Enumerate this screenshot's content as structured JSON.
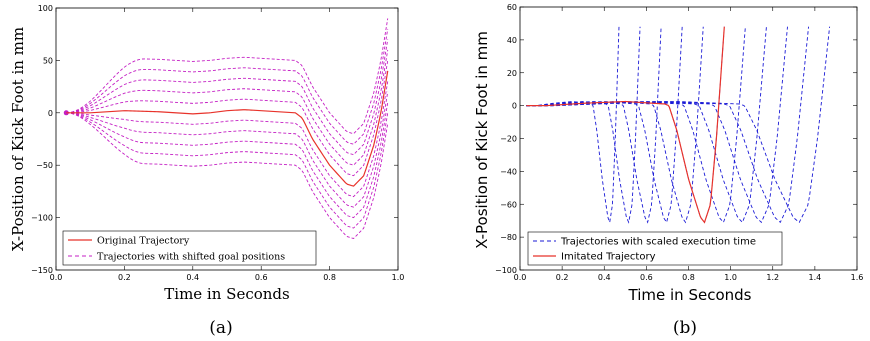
{
  "chart_data": [
    {
      "id": "a",
      "type": "line",
      "caption": "(a)",
      "xlabel": "Time in Seconds",
      "ylabel": "X-Position of Kick Foot in mm",
      "xlim": [
        0.0,
        1.0
      ],
      "ylim": [
        -150,
        100
      ],
      "xticks": [
        "0.0",
        "0.2",
        "0.4",
        "0.6",
        "0.8",
        "1.0"
      ],
      "yticks": [
        "100",
        "50",
        "0",
        "−50",
        "−100",
        "−150"
      ],
      "legend_position": "lower-left",
      "grid": false,
      "colors": {
        "original": "#e8332b",
        "shifted": "#c41fc4"
      },
      "series": [
        {
          "name": "Original Trajectory",
          "style": "solid",
          "x": [
            0.03,
            0.1,
            0.2,
            0.3,
            0.4,
            0.45,
            0.5,
            0.55,
            0.6,
            0.65,
            0.7,
            0.72,
            0.75,
            0.8,
            0.85,
            0.87,
            0.9,
            0.93,
            0.95,
            0.97
          ],
          "y": [
            0,
            0,
            2,
            1,
            -1,
            0,
            2,
            3,
            2,
            1,
            0,
            -5,
            -25,
            -50,
            -68,
            -70,
            -60,
            -30,
            0,
            40
          ]
        },
        {
          "name": "Trajectories with shifted goal positions",
          "style": "dashed",
          "offsets": [
            -50,
            -40,
            -30,
            -20,
            -10,
            10,
            20,
            30,
            40,
            50
          ]
        }
      ]
    },
    {
      "id": "b",
      "type": "line",
      "caption": "(b)",
      "xlabel": "Time in Seconds",
      "ylabel": "X-Position of Kick Foot in mm",
      "xlim": [
        0.0,
        1.6
      ],
      "ylim": [
        -100,
        60
      ],
      "xticks": [
        "0.0",
        "0.2",
        "0.4",
        "0.6",
        "0.8",
        "1.0",
        "1.2",
        "1.4",
        "1.6"
      ],
      "yticks": [
        "60",
        "40",
        "20",
        "0",
        "−20",
        "−40",
        "−60",
        "−80",
        "−100"
      ],
      "legend_position": "lower-right",
      "grid": false,
      "colors": {
        "scaled": "#1a1ad6",
        "imitated": "#e8332b"
      },
      "series": [
        {
          "name": "Trajectories with scaled execution time",
          "style": "dashed",
          "end_times": [
            0.47,
            0.57,
            0.67,
            0.77,
            0.87,
            0.97,
            1.07,
            1.17,
            1.27,
            1.37,
            1.47
          ]
        },
        {
          "name": "Imitated Trajectory",
          "style": "solid",
          "end_time": 0.97
        }
      ]
    }
  ]
}
